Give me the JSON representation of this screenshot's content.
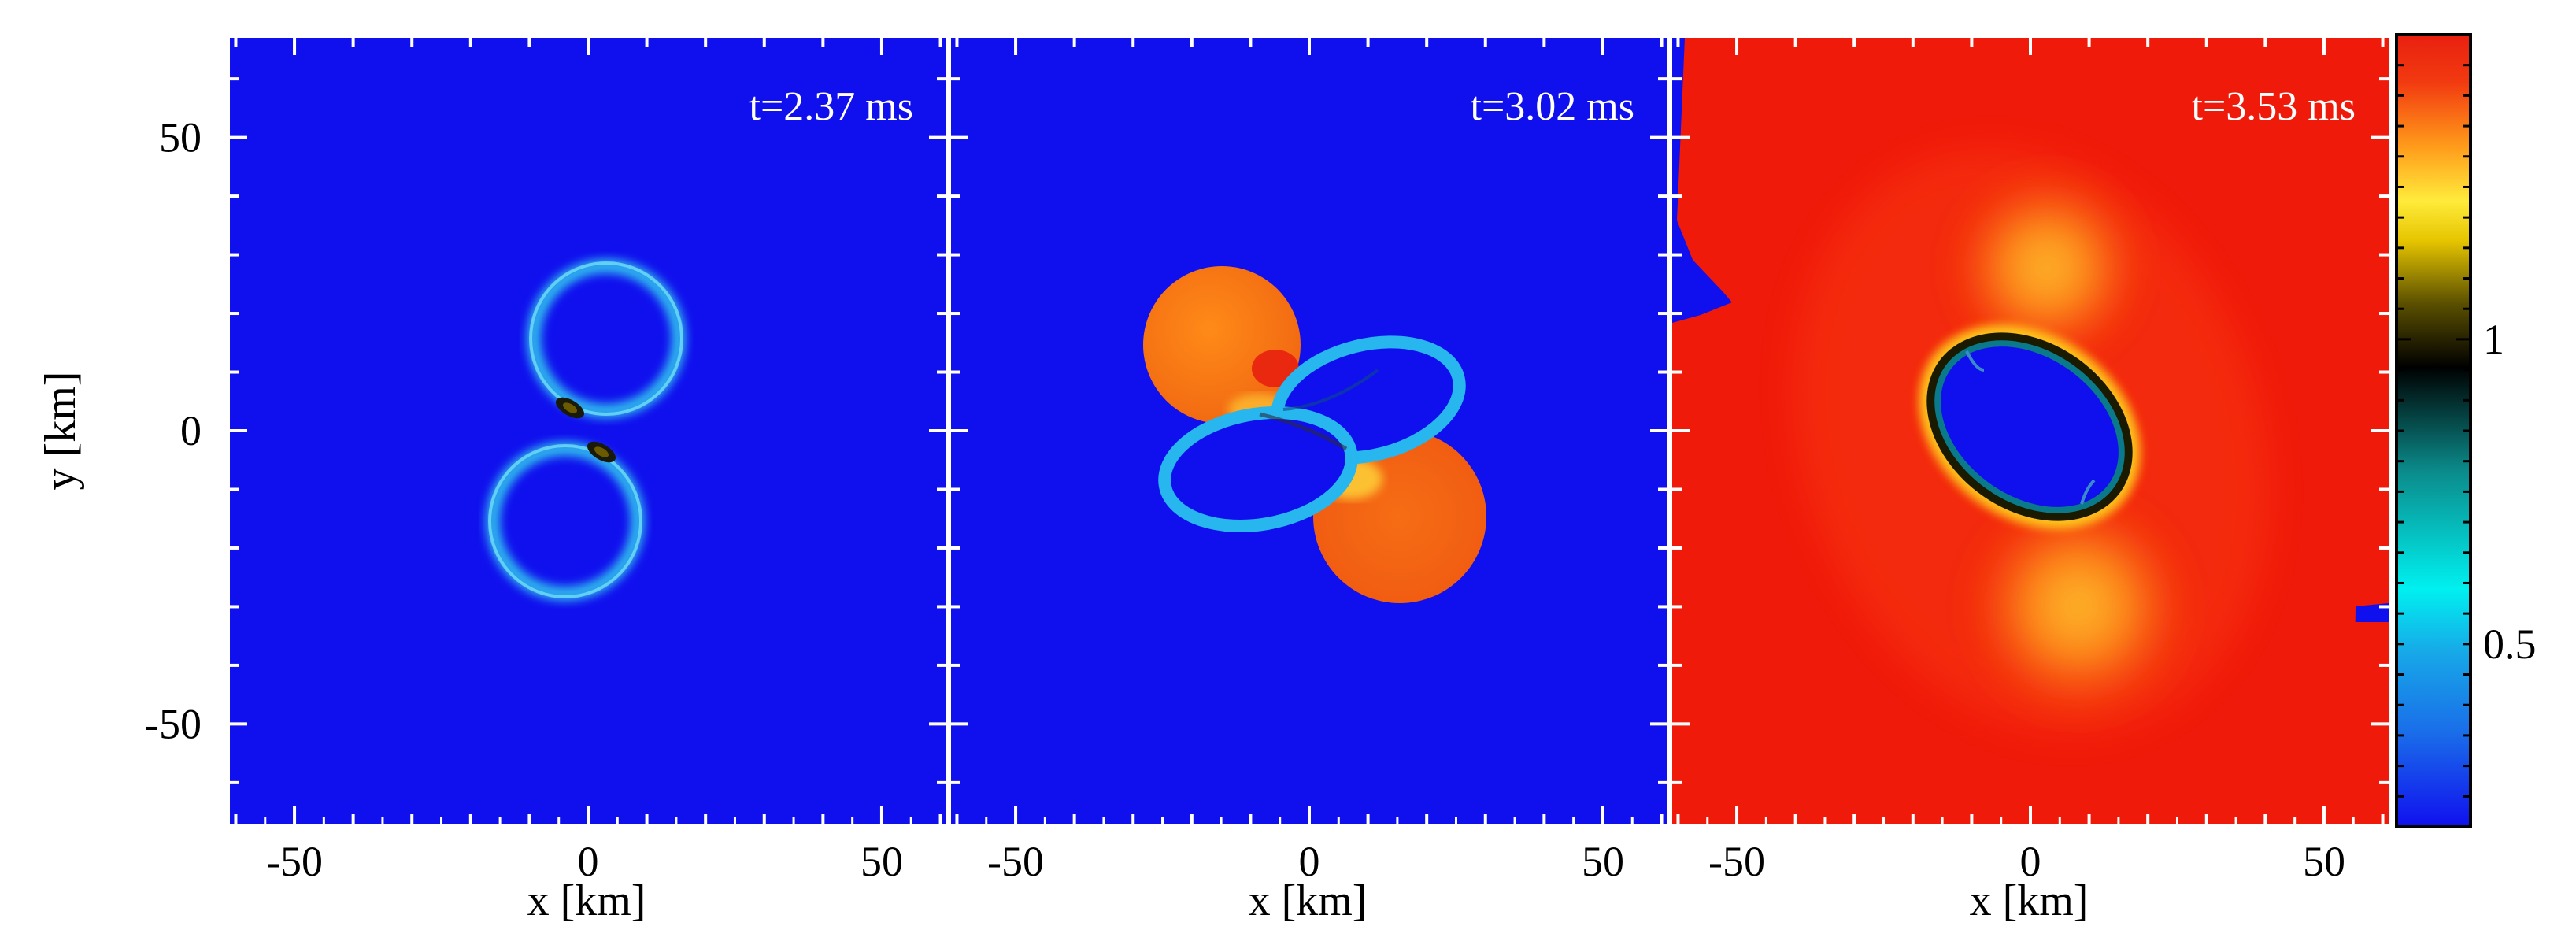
{
  "chart_data": {
    "type": "heatmap",
    "colormap": [
      "#1010ee",
      "#17a8e8",
      "#00f0f0",
      "#0b8a8a",
      "#000000",
      "#5a4f00",
      "#e6c500",
      "#ffeb3b",
      "#ff9a1a",
      "#f23a10",
      "#e82010"
    ],
    "colorbar": {
      "range": [
        0.2,
        1.5
      ],
      "ticks": [
        1,
        0.5
      ],
      "tick_labels": [
        "1",
        "0.5"
      ]
    },
    "xlabel": "x [km]",
    "ylabel": "y [km]",
    "xlim": [
      -61,
      61
    ],
    "ylim": [
      -67,
      67
    ],
    "x_ticks": [
      -50,
      0,
      50
    ],
    "x_tick_labels": [
      "-50",
      "0",
      "50"
    ],
    "y_ticks": [
      50,
      0,
      -50
    ],
    "y_tick_labels": [
      "50",
      "0",
      "-50"
    ],
    "colors": {
      "background": "#1010ee",
      "hot": "#f01a0a",
      "warm": "#ff7a14",
      "shell": "#27b6ee"
    },
    "panels": [
      {
        "time": "t=2.37 ms",
        "description": "two stars approaching"
      },
      {
        "time": "t=3.02 ms",
        "description": "contact and tidal lobes"
      },
      {
        "time": "t=3.53 ms",
        "description": "merged remnant with hot envelope"
      }
    ]
  }
}
